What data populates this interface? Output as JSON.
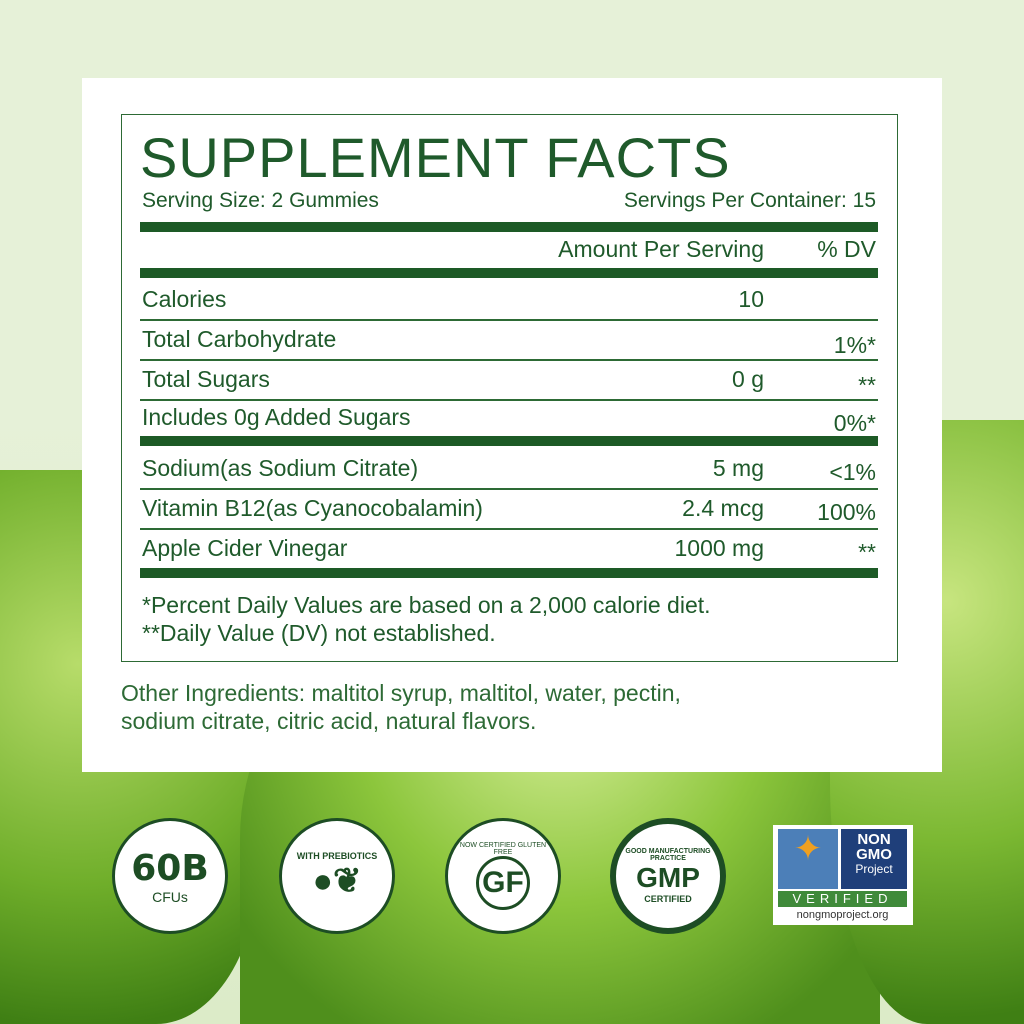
{
  "title": "SUPPLEMENT FACTS",
  "serving_size": "Serving Size: 2 Gummies",
  "servings_per_container": "Servings Per Container: 15",
  "col_amount": "Amount Per Serving",
  "col_dv": "% DV",
  "rows": [
    {
      "name": "Calories",
      "amount": "10",
      "dv": ""
    },
    {
      "name": "Total Carbohydrate",
      "amount": "",
      "dv": "1%*"
    },
    {
      "name": "Total Sugars",
      "amount": "0 g",
      "dv": "**"
    },
    {
      "name": "Includes 0g Added Sugars",
      "amount": "",
      "dv": "0%*"
    },
    {
      "name": "Sodium(as Sodium Citrate)",
      "amount": "5 mg",
      "dv": "<1%"
    },
    {
      "name": "Vitamin B12(as Cyanocobalamin)",
      "amount": "2.4 mcg",
      "dv": "100%"
    },
    {
      "name": "Apple Cider Vinegar",
      "amount": "1000 mg",
      "dv": "**"
    }
  ],
  "footnote1": "*Percent Daily Values are based on a 2,000 calorie diet.",
  "footnote2": "**Daily Value (DV) not established.",
  "other_ingredients_1": "Other Ingredients: maltitol syrup, maltitol, water, pectin,",
  "other_ingredients_2": "sodium citrate, citric acid, natural flavors.",
  "badges": {
    "cfu_main": "60B",
    "cfu_sub": "CFUs",
    "prebiotics": "WITH PREBIOTICS",
    "gf_ring": "NOW CERTIFIED GLUTEN FREE",
    "gf": "GF",
    "gmp_ring": "GOOD MANUFACTURING PRACTICE",
    "gmp": "GMP",
    "gmp_sub": "CERTIFIED",
    "nongmo_1": "NON",
    "nongmo_2": "GMO",
    "nongmo_3": "Project",
    "nongmo_verified": "VERIFIED",
    "nongmo_url": "nongmoproject.org"
  },
  "colors": {
    "brand_green": "#1d5a26",
    "background": "#e6f1d8"
  }
}
